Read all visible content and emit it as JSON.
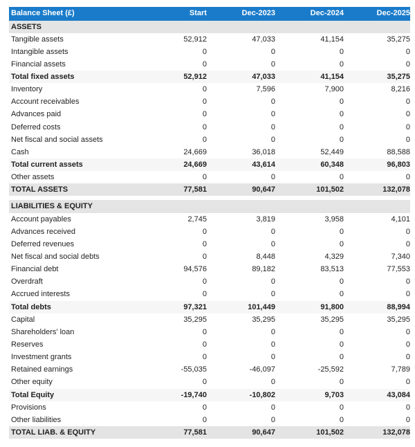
{
  "header": {
    "title": "Balance Sheet (£)",
    "columns": [
      "Start",
      "Dec-2023",
      "Dec-2024",
      "Dec-2025"
    ]
  },
  "colors": {
    "header_bg": "#1a7bca",
    "section_bg": "#e4e4e4",
    "total_bg": "#f6f6f6"
  },
  "sections": [
    {
      "title": "ASSETS",
      "rows": [
        {
          "label": "Tangible assets",
          "type": "normal",
          "values": [
            "52,912",
            "47,033",
            "41,154",
            "35,275"
          ]
        },
        {
          "label": "Intangible assets",
          "type": "normal",
          "values": [
            "0",
            "0",
            "0",
            "0"
          ]
        },
        {
          "label": "Financial assets",
          "type": "normal",
          "values": [
            "0",
            "0",
            "0",
            "0"
          ]
        },
        {
          "label": "Total fixed assets",
          "type": "total",
          "values": [
            "52,912",
            "47,033",
            "41,154",
            "35,275"
          ]
        },
        {
          "label": "Inventory",
          "type": "normal",
          "values": [
            "0",
            "7,596",
            "7,900",
            "8,216"
          ]
        },
        {
          "label": "Account receivables",
          "type": "normal",
          "values": [
            "0",
            "0",
            "0",
            "0"
          ]
        },
        {
          "label": "Advances paid",
          "type": "normal",
          "values": [
            "0",
            "0",
            "0",
            "0"
          ]
        },
        {
          "label": "Deferred costs",
          "type": "normal",
          "values": [
            "0",
            "0",
            "0",
            "0"
          ]
        },
        {
          "label": "Net fiscal and social assets",
          "type": "normal",
          "values": [
            "0",
            "0",
            "0",
            "0"
          ]
        },
        {
          "label": "Cash",
          "type": "normal",
          "values": [
            "24,669",
            "36,018",
            "52,449",
            "88,588"
          ]
        },
        {
          "label": "Total current assets",
          "type": "total",
          "values": [
            "24,669",
            "43,614",
            "60,348",
            "96,803"
          ]
        },
        {
          "label": "Other assets",
          "type": "normal",
          "values": [
            "0",
            "0",
            "0",
            "0"
          ]
        },
        {
          "label": "TOTAL ASSETS",
          "type": "grand",
          "values": [
            "77,581",
            "90,647",
            "101,502",
            "132,078"
          ]
        }
      ]
    },
    {
      "title": "LIABILITIES & EQUITY",
      "rows": [
        {
          "label": "Account payables",
          "type": "normal",
          "values": [
            "2,745",
            "3,819",
            "3,958",
            "4,101"
          ]
        },
        {
          "label": "Advances received",
          "type": "normal",
          "values": [
            "0",
            "0",
            "0",
            "0"
          ]
        },
        {
          "label": "Deferred revenues",
          "type": "normal",
          "values": [
            "0",
            "0",
            "0",
            "0"
          ]
        },
        {
          "label": "Net fiscal and social debts",
          "type": "normal",
          "values": [
            "0",
            "8,448",
            "4,329",
            "7,340"
          ]
        },
        {
          "label": "Financial debt",
          "type": "normal",
          "values": [
            "94,576",
            "89,182",
            "83,513",
            "77,553"
          ]
        },
        {
          "label": "Overdraft",
          "type": "normal",
          "values": [
            "0",
            "0",
            "0",
            "0"
          ]
        },
        {
          "label": "Accrued interests",
          "type": "normal",
          "values": [
            "0",
            "0",
            "0",
            "0"
          ]
        },
        {
          "label": "Total debts",
          "type": "total",
          "values": [
            "97,321",
            "101,449",
            "91,800",
            "88,994"
          ]
        },
        {
          "label": "Capital",
          "type": "normal",
          "values": [
            "35,295",
            "35,295",
            "35,295",
            "35,295"
          ]
        },
        {
          "label": "Shareholders' loan",
          "type": "normal",
          "values": [
            "0",
            "0",
            "0",
            "0"
          ]
        },
        {
          "label": "Reserves",
          "type": "normal",
          "values": [
            "0",
            "0",
            "0",
            "0"
          ]
        },
        {
          "label": "Investment grants",
          "type": "normal",
          "values": [
            "0",
            "0",
            "0",
            "0"
          ]
        },
        {
          "label": "Retained earnings",
          "type": "normal",
          "values": [
            "-55,035",
            "-46,097",
            "-25,592",
            "7,789"
          ]
        },
        {
          "label": "Other equity",
          "type": "normal",
          "values": [
            "0",
            "0",
            "0",
            "0"
          ]
        },
        {
          "label": "Total Equity",
          "type": "total",
          "values": [
            "-19,740",
            "-10,802",
            "9,703",
            "43,084"
          ]
        },
        {
          "label": "Provisions",
          "type": "normal",
          "values": [
            "0",
            "0",
            "0",
            "0"
          ]
        },
        {
          "label": "Other liabilities",
          "type": "normal",
          "values": [
            "0",
            "0",
            "0",
            "0"
          ]
        },
        {
          "label": "TOTAL LIAB. & EQUITY",
          "type": "grand",
          "values": [
            "77,581",
            "90,647",
            "101,502",
            "132,078"
          ]
        }
      ]
    }
  ]
}
